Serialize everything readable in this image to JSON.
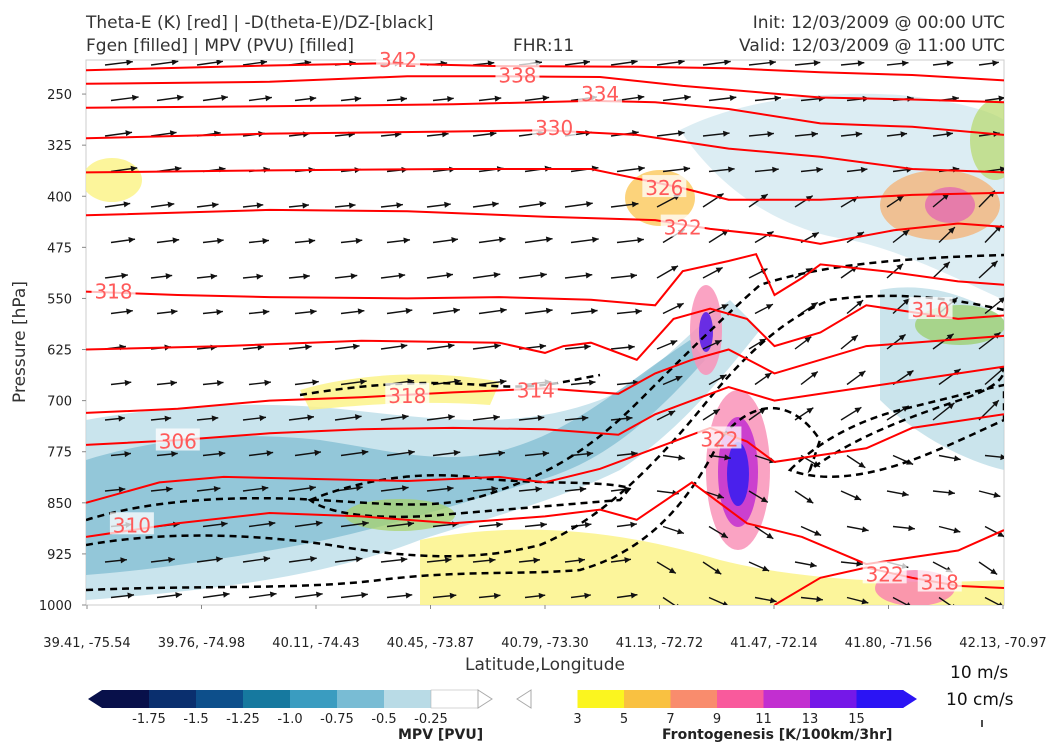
{
  "header": {
    "title_left_1": "Theta-E (K) [red] | -D(theta-E)/DZ-[black]",
    "title_left_2": "Fgen [filled] | MPV (PVU) [filled]",
    "fhr": "FHR:11",
    "init": "Init: 12/03/2009 @ 00:00 UTC",
    "valid": "Valid: 12/03/2009 @ 11:00 UTC"
  },
  "colors": {
    "theta_e": "#ff0000",
    "neg_dthetae_dz": "#000000",
    "theta_label": "#ff5a5a",
    "mpv_scale": [
      "#08104a",
      "#0a2f6e",
      "#0d4f8b",
      "#16799f",
      "#3a9cc0",
      "#79bcd4",
      "#b9dbe6",
      "#ffffff"
    ],
    "fgen_scale": [
      "#ffffff",
      "#fbf51f",
      "#f9c141",
      "#f98c6d",
      "#f95a9c",
      "#c22fd0",
      "#7518e8",
      "#2b14f4"
    ]
  },
  "chart_data": {
    "type": "cross-section",
    "xlabel": "Latitude,Longitude",
    "ylabel": "Pressure [hPa]",
    "x_ticks": [
      "39.41, -75.54",
      "39.76, -74.98",
      "40.11, -74.43",
      "40.45, -73.87",
      "40.79, -73.30",
      "41.13, -72.72",
      "41.47, -72.14",
      "41.80, -71.56",
      "42.13, -70.97"
    ],
    "y_ticks": [
      250,
      325,
      400,
      475,
      550,
      625,
      700,
      775,
      850,
      925,
      1000
    ],
    "y_range": [
      200,
      1000
    ],
    "theta_e_labels": [
      {
        "text": "342",
        "x": 0.34,
        "p": 200
      },
      {
        "text": "338",
        "x": 0.47,
        "p": 223
      },
      {
        "text": "334",
        "x": 0.56,
        "p": 250
      },
      {
        "text": "330",
        "x": 0.51,
        "p": 300
      },
      {
        "text": "326",
        "x": 0.63,
        "p": 388
      },
      {
        "text": "322",
        "x": 0.65,
        "p": 446
      },
      {
        "text": "318",
        "x": 0.03,
        "p": 540
      },
      {
        "text": "318",
        "x": 0.35,
        "p": 693
      },
      {
        "text": "314",
        "x": 0.49,
        "p": 685
      },
      {
        "text": "310",
        "x": 0.92,
        "p": 567
      },
      {
        "text": "322",
        "x": 0.69,
        "p": 757
      },
      {
        "text": "306",
        "x": 0.1,
        "p": 760
      },
      {
        "text": "310",
        "x": 0.05,
        "p": 883
      },
      {
        "text": "322",
        "x": 0.87,
        "p": 955
      },
      {
        "text": "318",
        "x": 0.93,
        "p": 967
      }
    ],
    "theta_e_lines": [
      [
        [
          0,
          215
        ],
        [
          0.2,
          208
        ],
        [
          0.32,
          205
        ],
        [
          0.45,
          209
        ],
        [
          0.6,
          210
        ],
        [
          0.7,
          212
        ],
        [
          0.8,
          218
        ],
        [
          0.9,
          222
        ],
        [
          1,
          230
        ]
      ],
      [
        [
          0,
          235
        ],
        [
          0.2,
          232
        ],
        [
          0.35,
          224
        ],
        [
          0.45,
          224
        ],
        [
          0.56,
          225
        ],
        [
          0.65,
          238
        ],
        [
          0.8,
          255
        ],
        [
          0.9,
          258
        ],
        [
          1,
          262
        ]
      ],
      [
        [
          0,
          270
        ],
        [
          0.2,
          268
        ],
        [
          0.4,
          265
        ],
        [
          0.55,
          260
        ],
        [
          0.62,
          262
        ],
        [
          0.7,
          272
        ],
        [
          0.8,
          293
        ],
        [
          0.9,
          298
        ],
        [
          1,
          310
        ]
      ],
      [
        [
          0,
          315
        ],
        [
          0.2,
          308
        ],
        [
          0.4,
          305
        ],
        [
          0.5,
          303
        ],
        [
          0.6,
          310
        ],
        [
          0.7,
          330
        ],
        [
          0.8,
          342
        ],
        [
          0.9,
          360
        ],
        [
          1,
          365
        ]
      ],
      [
        [
          0,
          365
        ],
        [
          0.2,
          362
        ],
        [
          0.4,
          360
        ],
        [
          0.55,
          360
        ],
        [
          0.65,
          388
        ],
        [
          0.7,
          405
        ],
        [
          0.8,
          405
        ],
        [
          0.9,
          398
        ],
        [
          1,
          395
        ]
      ],
      [
        [
          0,
          428
        ],
        [
          0.2,
          420
        ],
        [
          0.35,
          422
        ],
        [
          0.5,
          430
        ],
        [
          0.62,
          435
        ],
        [
          0.68,
          448
        ],
        [
          0.75,
          458
        ],
        [
          0.8,
          470
        ],
        [
          0.88,
          450
        ],
        [
          0.95,
          440
        ],
        [
          1,
          445
        ]
      ],
      [
        [
          0,
          540
        ],
        [
          0.1,
          545
        ],
        [
          0.2,
          548
        ],
        [
          0.35,
          550
        ],
        [
          0.45,
          548
        ],
        [
          0.55,
          552
        ],
        [
          0.62,
          560
        ],
        [
          0.65,
          510
        ],
        [
          0.7,
          495
        ],
        [
          0.73,
          485
        ],
        [
          0.75,
          545
        ],
        [
          0.78,
          520
        ],
        [
          0.8,
          500
        ],
        [
          0.87,
          510
        ],
        [
          0.95,
          525
        ],
        [
          1,
          530
        ]
      ],
      [
        [
          0,
          625
        ],
        [
          0.15,
          620
        ],
        [
          0.3,
          612
        ],
        [
          0.45,
          615
        ],
        [
          0.5,
          630
        ],
        [
          0.52,
          620
        ],
        [
          0.55,
          615
        ],
        [
          0.6,
          640
        ],
        [
          0.64,
          580
        ],
        [
          0.68,
          565
        ],
        [
          0.72,
          580
        ],
        [
          0.75,
          620
        ],
        [
          0.8,
          600
        ],
        [
          0.85,
          560
        ],
        [
          0.9,
          570
        ],
        [
          0.95,
          580
        ],
        [
          1,
          575
        ]
      ],
      [
        [
          0,
          718
        ],
        [
          0.1,
          712
        ],
        [
          0.2,
          700
        ],
        [
          0.3,
          695
        ],
        [
          0.4,
          688
        ],
        [
          0.5,
          682
        ],
        [
          0.58,
          690
        ],
        [
          0.62,
          660
        ],
        [
          0.66,
          640
        ],
        [
          0.7,
          625
        ],
        [
          0.75,
          660
        ],
        [
          0.8,
          640
        ],
        [
          0.85,
          620
        ],
        [
          0.9,
          615
        ],
        [
          1,
          605
        ]
      ],
      [
        [
          0,
          765
        ],
        [
          0.1,
          758
        ],
        [
          0.2,
          748
        ],
        [
          0.3,
          742
        ],
        [
          0.4,
          740
        ],
        [
          0.5,
          742
        ],
        [
          0.58,
          750
        ],
        [
          0.62,
          720
        ],
        [
          0.66,
          700
        ],
        [
          0.7,
          680
        ],
        [
          0.75,
          700
        ],
        [
          0.8,
          690
        ],
        [
          0.85,
          680
        ],
        [
          0.9,
          670
        ],
        [
          1,
          650
        ]
      ],
      [
        [
          0,
          850
        ],
        [
          0.08,
          820
        ],
        [
          0.15,
          812
        ],
        [
          0.25,
          815
        ],
        [
          0.35,
          818
        ],
        [
          0.45,
          812
        ],
        [
          0.5,
          820
        ],
        [
          0.56,
          800
        ],
        [
          0.62,
          770
        ],
        [
          0.68,
          740
        ],
        [
          0.72,
          760
        ],
        [
          0.75,
          790
        ],
        [
          0.8,
          780
        ],
        [
          0.85,
          770
        ],
        [
          0.9,
          740
        ],
        [
          1,
          720
        ]
      ],
      [
        [
          0,
          900
        ],
        [
          0.1,
          880
        ],
        [
          0.2,
          865
        ],
        [
          0.3,
          870
        ],
        [
          0.4,
          880
        ],
        [
          0.5,
          870
        ],
        [
          0.56,
          860
        ],
        [
          0.6,
          875
        ],
        [
          0.66,
          820
        ],
        [
          0.72,
          880
        ],
        [
          0.78,
          900
        ],
        [
          0.85,
          940
        ],
        [
          0.9,
          930
        ],
        [
          0.95,
          920
        ],
        [
          1,
          890
        ]
      ],
      [
        [
          0.75,
          1000
        ],
        [
          0.8,
          960
        ],
        [
          0.85,
          945
        ],
        [
          0.9,
          960
        ],
        [
          0.95,
          972
        ],
        [
          1,
          975
        ]
      ]
    ],
    "colorbars": [
      {
        "label": "MPV [PVU]",
        "ticks": [
          "-1.75",
          "-1.5",
          "-1.25",
          "-1.0",
          "-0.75",
          "-0.5",
          "-0.25"
        ]
      },
      {
        "label": "Frontogenesis [K/100km/3hr]",
        "ticks": [
          "3",
          "5",
          "7",
          "9",
          "11",
          "13",
          "15"
        ]
      }
    ],
    "reference_vectors": [
      "10 m/s",
      "10 cm/s"
    ]
  }
}
